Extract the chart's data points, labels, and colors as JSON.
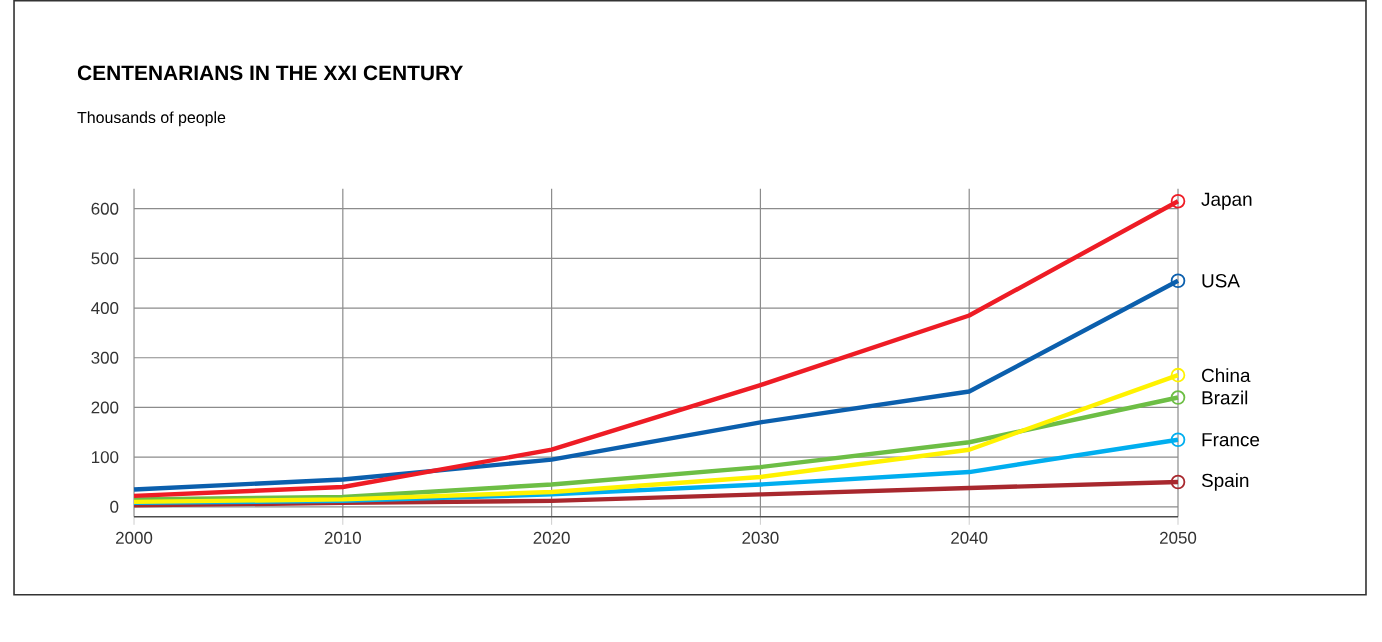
{
  "chart_data": {
    "type": "line",
    "title": "CENTENARIANS IN THE XXI CENTURY",
    "ylabel": "Thousands of people",
    "x": [
      2000,
      2010,
      2020,
      2030,
      2040,
      2050
    ],
    "series": [
      {
        "name": "Japan",
        "color": "#ee1c25",
        "values": [
          22,
          40,
          115,
          245,
          385,
          615
        ]
      },
      {
        "name": "USA",
        "color": "#0b5fad",
        "values": [
          35,
          55,
          95,
          170,
          232,
          455
        ]
      },
      {
        "name": "China",
        "color": "#fff200",
        "values": [
          10,
          15,
          30,
          60,
          115,
          265
        ]
      },
      {
        "name": "Brazil",
        "color": "#6dbe45",
        "values": [
          15,
          20,
          45,
          80,
          130,
          220
        ]
      },
      {
        "name": "France",
        "color": "#00aeef",
        "values": [
          8,
          12,
          25,
          45,
          70,
          135
        ]
      },
      {
        "name": "Spain",
        "color": "#a8282e",
        "values": [
          3,
          8,
          12,
          25,
          38,
          50
        ]
      }
    ],
    "xlim": [
      2000,
      2050
    ],
    "xticks": [
      2000,
      2010,
      2020,
      2030,
      2040,
      2050
    ],
    "ylim": [
      -20,
      640
    ],
    "yticks": [
      0,
      100,
      200,
      300,
      400,
      500,
      600
    ],
    "grid": true
  }
}
